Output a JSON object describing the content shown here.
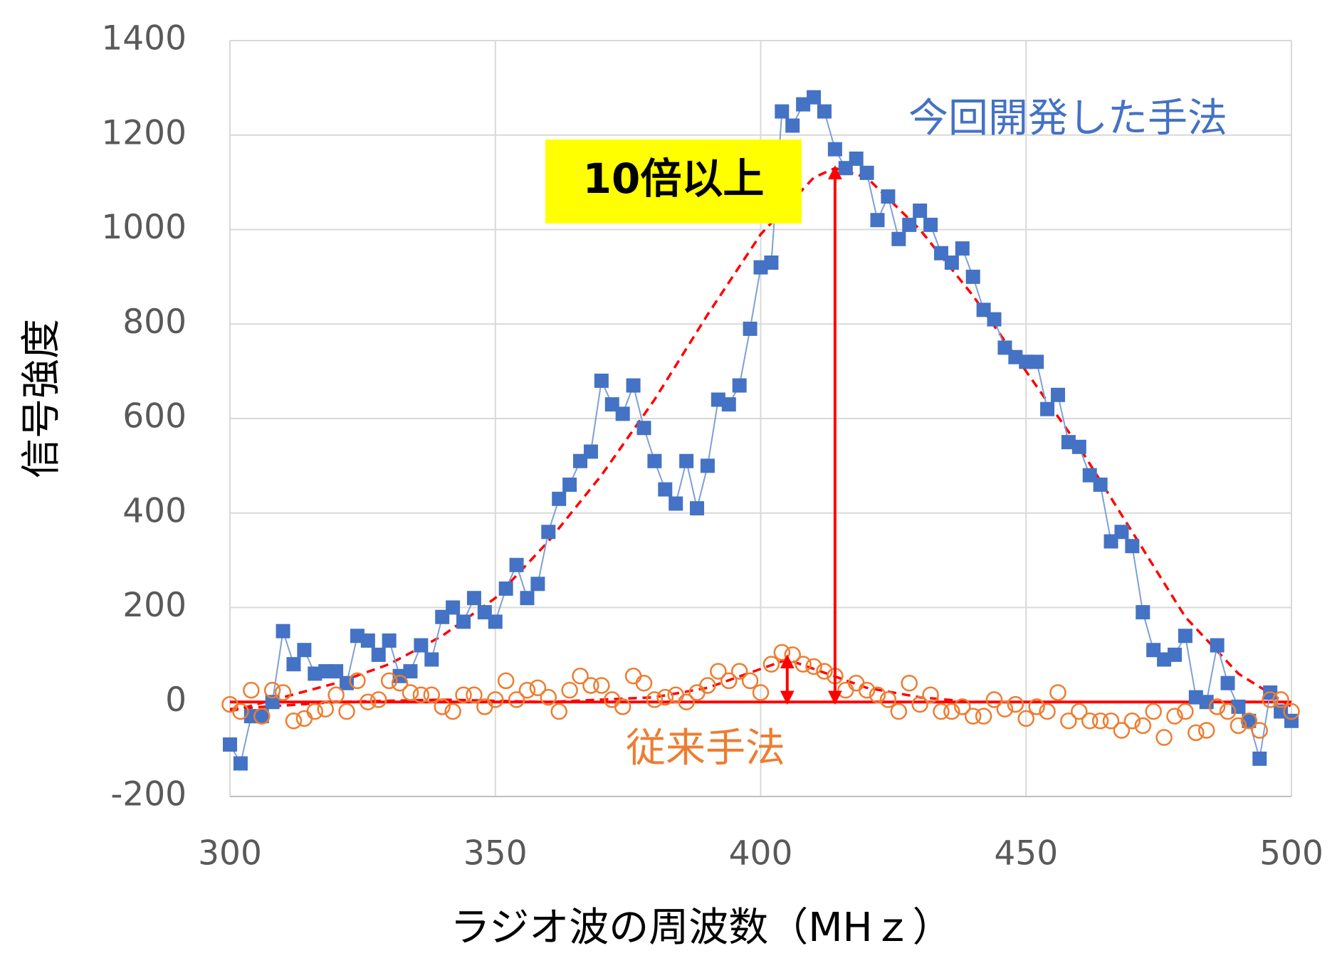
{
  "chart_data": {
    "type": "scatter",
    "x_label": "ラジオ波の周波数（MHｚ）",
    "y_label": "信号強度",
    "x": [
      300,
      302,
      304,
      306,
      308,
      310,
      312,
      314,
      316,
      318,
      320,
      322,
      324,
      326,
      328,
      330,
      332,
      334,
      336,
      338,
      340,
      342,
      344,
      346,
      348,
      350,
      352,
      354,
      356,
      358,
      360,
      362,
      364,
      366,
      368,
      370,
      372,
      374,
      376,
      378,
      380,
      382,
      384,
      386,
      388,
      390,
      392,
      394,
      396,
      398,
      400,
      402,
      404,
      406,
      408,
      410,
      412,
      414,
      416,
      418,
      420,
      422,
      424,
      426,
      428,
      430,
      432,
      434,
      436,
      438,
      440,
      442,
      444,
      446,
      448,
      450,
      452,
      454,
      456,
      458,
      460,
      462,
      464,
      466,
      468,
      470,
      472,
      474,
      476,
      478,
      480,
      482,
      484,
      486,
      488,
      490,
      492,
      494,
      496,
      498,
      500
    ],
    "series": [
      {
        "marker": "square",
        "color": "#4472c4",
        "connect": true,
        "values": [
          -90,
          -130,
          -30,
          -30,
          0,
          150,
          80,
          110,
          60,
          65,
          65,
          40,
          140,
          130,
          100,
          130,
          55,
          65,
          120,
          90,
          180,
          200,
          170,
          220,
          190,
          170,
          240,
          290,
          220,
          250,
          360,
          430,
          460,
          510,
          530,
          680,
          630,
          610,
          670,
          580,
          510,
          450,
          420,
          510,
          410,
          500,
          640,
          630,
          670,
          790,
          920,
          930,
          1250,
          1220,
          1265,
          1280,
          1250,
          1170,
          1130,
          1150,
          1120,
          1020,
          1070,
          980,
          1010,
          1040,
          1010,
          950,
          930,
          960,
          900,
          830,
          810,
          750,
          730,
          720,
          720,
          620,
          650,
          550,
          540,
          480,
          460,
          340,
          360,
          330,
          190,
          110,
          90,
          100,
          140,
          10,
          0,
          120,
          40,
          -10,
          -40,
          -120,
          20,
          -20,
          -40
        ]
      },
      {
        "marker": "circle",
        "color": "#ed7d31",
        "connect": false,
        "values": [
          -5,
          -20,
          25,
          -30,
          25,
          20,
          -40,
          -35,
          -20,
          -15,
          15,
          -20,
          45,
          0,
          5,
          45,
          40,
          20,
          15,
          15,
          -10,
          -20,
          15,
          15,
          -10,
          5,
          45,
          5,
          25,
          30,
          10,
          -20,
          25,
          55,
          35,
          35,
          5,
          -10,
          55,
          40,
          5,
          10,
          15,
          0,
          20,
          35,
          65,
          45,
          65,
          45,
          20,
          80,
          105,
          100,
          80,
          75,
          65,
          55,
          25,
          40,
          25,
          15,
          5,
          -20,
          40,
          -5,
          15,
          -20,
          -20,
          -10,
          -30,
          -30,
          5,
          -15,
          -5,
          -35,
          -10,
          -20,
          20,
          -40,
          -20,
          -40,
          -40,
          -40,
          -60,
          -40,
          -50,
          -20,
          -75,
          -30,
          -20,
          -65,
          -60,
          -10,
          -20,
          -50,
          -40,
          -60,
          5,
          5,
          -20
        ]
      }
    ],
    "fits": [
      {
        "color": "#ff0000",
        "x": [
          300,
          310,
          320,
          330,
          340,
          350,
          360,
          370,
          380,
          390,
          400,
          410,
          414,
          420,
          430,
          440,
          450,
          460,
          470,
          480,
          490,
          500
        ],
        "values": [
          -20,
          10,
          40,
          80,
          140,
          220,
          340,
          480,
          640,
          820,
          990,
          1110,
          1130,
          1110,
          1000,
          860,
          700,
          540,
          360,
          180,
          60,
          -10
        ]
      },
      {
        "color": "#ff0000",
        "x": [
          300,
          320,
          340,
          360,
          380,
          390,
          400,
          405,
          410,
          420,
          430,
          440,
          460,
          480,
          500
        ],
        "values": [
          -15,
          0,
          5,
          0,
          10,
          30,
          70,
          90,
          70,
          30,
          10,
          0,
          0,
          0,
          0
        ]
      }
    ],
    "reference_line": {
      "y": 0,
      "color": "#ff0000"
    },
    "arrows": [
      {
        "x": 414,
        "from": 0,
        "to": 1130,
        "color": "#ff0000"
      },
      {
        "x": 405,
        "from": 0,
        "to": 95,
        "color": "#ff0000"
      }
    ],
    "annotations": [
      {
        "text": "今回開発した手法",
        "color": "#4472c4"
      },
      {
        "text": "従来手法",
        "color": "#ed7d31"
      },
      {
        "text": "10倍以上",
        "box": "#ffff00"
      }
    ],
    "xlim": [
      300,
      500
    ],
    "ylim": [
      -200,
      1400
    ],
    "xticks": [
      300,
      350,
      400,
      450,
      500
    ],
    "yticks": [
      -200,
      0,
      200,
      400,
      600,
      800,
      1000,
      1200,
      1400
    ],
    "grid": true
  }
}
